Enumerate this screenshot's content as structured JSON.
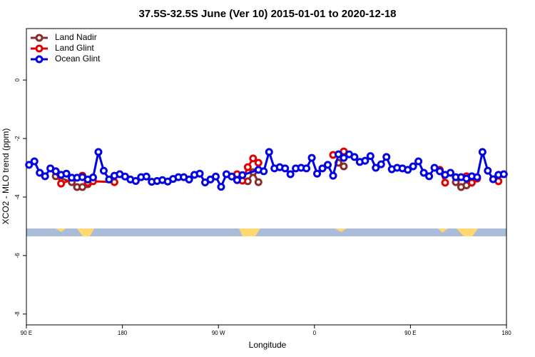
{
  "chart_data": {
    "type": "line",
    "title": "37.5S-32.5S June (Ver 10)   2015-01-01 to 2020-12-18",
    "xlabel": "Longitude",
    "ylabel": "XCO2 - MLO trend (ppm)",
    "xlim": [
      90,
      540
    ],
    "xticks": [
      {
        "value": 90,
        "label": "90 E"
      },
      180,
      {
        "value": 270,
        "label": "90 W"
      },
      {
        "value": 360,
        "label": "0"
      },
      {
        "value": 450,
        "label": "90 E"
      },
      {
        "value": 540,
        "label": "180"
      }
    ],
    "ylim": [
      -8.37,
      1.76
    ],
    "yticks": [
      0,
      -2,
      -4,
      -6,
      -8
    ],
    "legend": "top-left",
    "series": [
      {
        "name": "Land Nadir",
        "color": "#8b2a2a",
        "x": [
          117.5,
          132.5,
          137.5,
          142.5,
          147.5,
          220,
          297.5,
          302.5,
          307.5,
          350,
          382.5,
          387.5,
          450,
          492.5,
          497.5,
          502.5,
          507.5
        ],
        "values": [
          -3.29,
          -3.49,
          -3.66,
          -3.66,
          -3.56,
          null,
          -3.46,
          -3.15,
          -3.49,
          null,
          -2.83,
          -2.95,
          null,
          -3.49,
          -3.66,
          -3.6,
          -3.34
        ]
      },
      {
        "name": "Land Glint",
        "color": "#e00000",
        "x": [
          117.5,
          122.5,
          142.5,
          147.5,
          152.5,
          172.5,
          230,
          287.5,
          292.5,
          297.5,
          302.5,
          307.5,
          350,
          377.5,
          387.5,
          440,
          477.5,
          482.5,
          495,
          502.5,
          507.5,
          512.5,
          520,
          532.5
        ],
        "values": [
          -3.12,
          -3.54,
          -3.27,
          -3.51,
          -3.46,
          -3.49,
          null,
          -3.22,
          -3.44,
          -2.98,
          -2.68,
          -2.83,
          null,
          -2.56,
          -2.44,
          null,
          -3.07,
          -3.51,
          null,
          -3.29,
          -3.51,
          -3.37,
          null,
          -3.46
        ]
      },
      {
        "name": "Ocean Glint",
        "color": "#0000e0",
        "x": [
          92.5,
          97.5,
          102.5,
          107.5,
          112.5,
          117.5,
          122.5,
          127.5,
          132.5,
          137.5,
          142.5,
          147.5,
          152.5,
          157.5,
          162.5,
          167.5,
          172.5,
          177.5,
          182.5,
          187.5,
          192.5,
          197.5,
          202.5,
          207.5,
          212.5,
          217.5,
          222.5,
          227.5,
          232.5,
          237.5,
          242.5,
          247.5,
          252.5,
          257.5,
          262.5,
          267.5,
          272.5,
          277.5,
          282.5,
          287.5,
          292.5,
          307.5,
          312.5,
          317.5,
          322.5,
          327.5,
          332.5,
          337.5,
          342.5,
          347.5,
          352.5,
          357.5,
          362.5,
          367.5,
          372.5,
          377.5,
          382.5,
          387.5,
          392.5,
          397.5,
          402.5,
          407.5,
          412.5,
          417.5,
          422.5,
          427.5,
          432.5,
          437.5,
          442.5,
          447.5,
          452.5,
          457.5,
          462.5,
          467.5,
          472.5,
          477.5,
          482.5,
          487.5,
          492.5,
          497.5,
          502.5,
          507.5,
          512.5,
          517.5,
          522.5,
          527.5,
          532.5,
          537.5
        ],
        "values": [
          -2.9,
          -2.78,
          -3.17,
          -3.29,
          -3.02,
          -3.12,
          -3.24,
          -3.2,
          -3.34,
          -3.34,
          -3.32,
          -3.4,
          -3.33,
          -2.46,
          -3.1,
          -3.4,
          -3.27,
          -3.22,
          -3.3,
          -3.4,
          -3.45,
          -3.32,
          -3.3,
          -3.48,
          -3.45,
          -3.42,
          -3.47,
          -3.38,
          -3.32,
          -3.32,
          -3.4,
          -3.24,
          -3.2,
          -3.5,
          -3.4,
          -3.3,
          -3.65,
          -3.22,
          -3.3,
          -3.42,
          -3.25,
          -3.07,
          -3.12,
          -2.46,
          -3.02,
          -2.98,
          -3.02,
          -3.22,
          -3.02,
          -3.0,
          -3.02,
          -2.66,
          -3.2,
          -3.02,
          -2.9,
          -3.27,
          -2.54,
          -2.66,
          -2.54,
          -2.63,
          -2.8,
          -2.76,
          -2.6,
          -3.0,
          -2.88,
          -2.63,
          -3.05,
          -3.0,
          -3.02,
          -3.07,
          -2.95,
          -2.78,
          -3.17,
          -3.29,
          -3.0,
          -3.12,
          -3.24,
          -3.17,
          -3.32,
          -3.32,
          -3.37,
          -3.29,
          -3.32,
          -2.46,
          -3.1,
          -3.39,
          -3.24,
          -3.22
        ]
      }
    ]
  }
}
